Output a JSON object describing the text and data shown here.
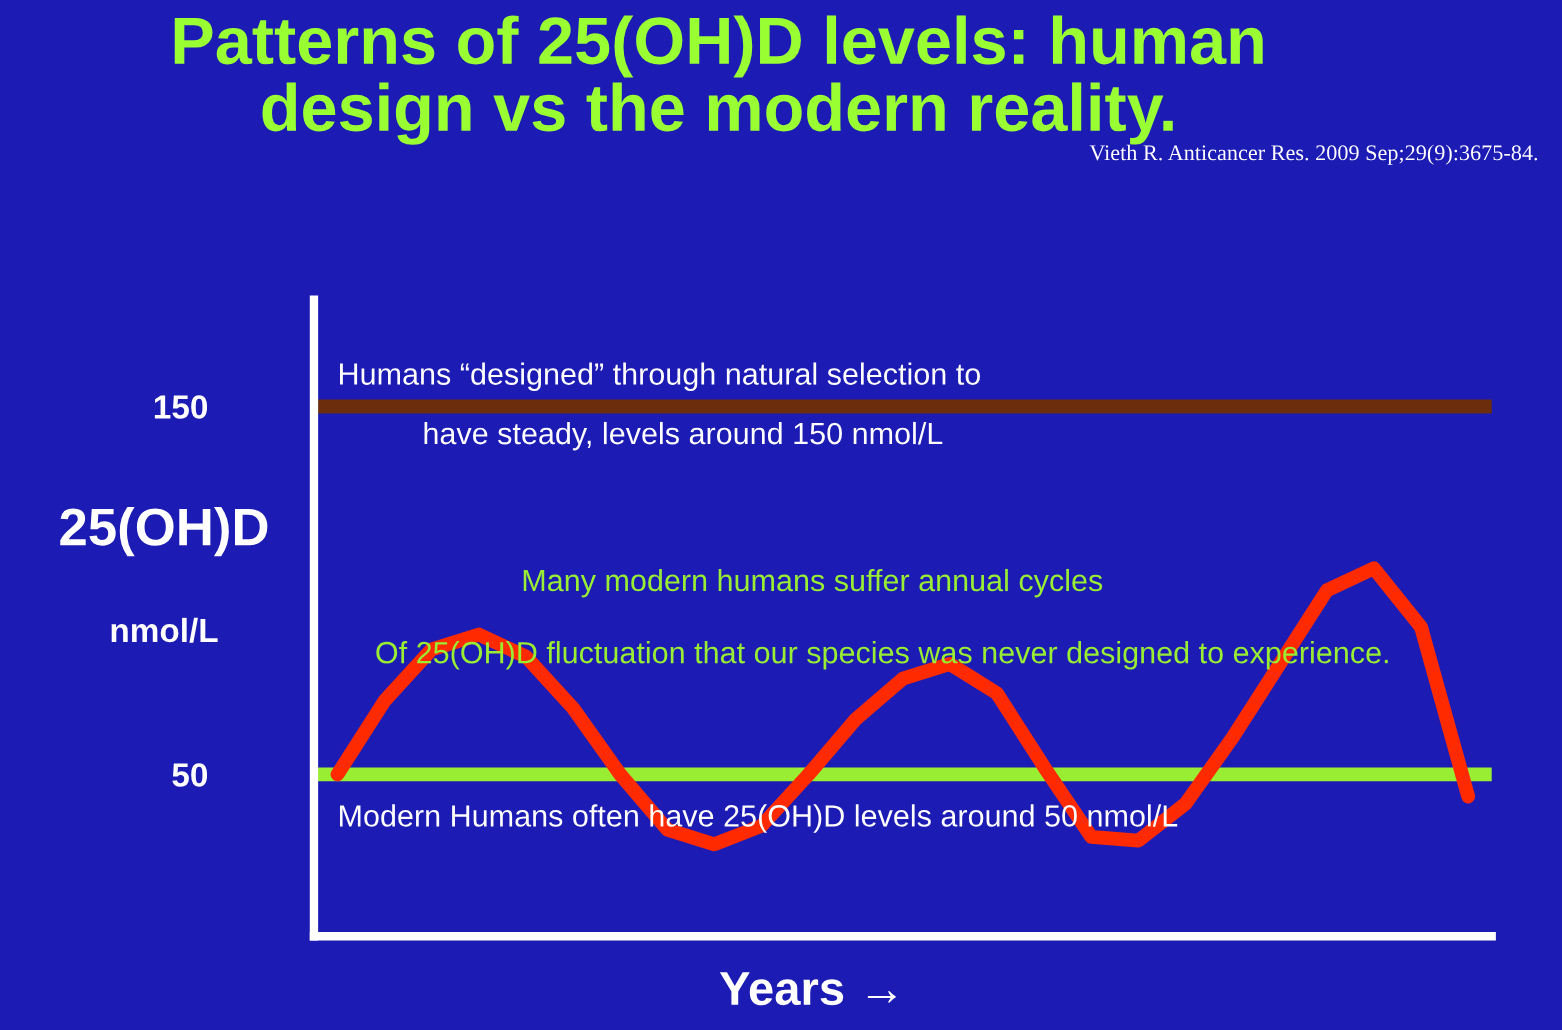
{
  "chart_data": {
    "type": "line",
    "title": "Patterns of 25(OH)D levels: human\ndesign vs the modern reality.",
    "xlabel": "Years →",
    "ylabel": "25(OH)D\nnmol/L",
    "categories": [
      null,
      null,
      null,
      null,
      null,
      null,
      null,
      null,
      null,
      null,
      null,
      null,
      null,
      null,
      null,
      null,
      null,
      null,
      null,
      null,
      null,
      null,
      null,
      null,
      null
    ],
    "series": [
      {
        "color": "#ff2a00",
        "values": [
          50,
          70,
          84,
          88,
          82,
          68,
          50,
          35,
          31,
          36,
          50,
          65,
          76,
          80,
          72,
          52,
          33,
          32,
          42,
          60,
          80,
          100,
          106,
          90,
          44
        ]
      }
    ],
    "ylim": [
      6,
      179
    ],
    "yticks": [
      50,
      150
    ],
    "grid": false,
    "marker": "none",
    "line_style": "solid",
    "ref_lines": [
      {
        "axis": "y",
        "value": 150,
        "label": "Humans “designed” through natural selection to\n          have steady, levels around 150 nmol/L",
        "color": "#6b2d0c"
      },
      {
        "axis": "y",
        "value": 50,
        "label": "Modern Humans often have 25(OH)D levels around 50 nmol/L",
        "color": "#99ee33"
      }
    ],
    "annotations": [
      "Vieth R. Anticancer Res. 2009 Sep;29(9):3675-84.",
      "Many modern humans suffer annual cycles",
      "Of 25(OH)D fluctuation that our species was never designed to experience."
    ]
  }
}
